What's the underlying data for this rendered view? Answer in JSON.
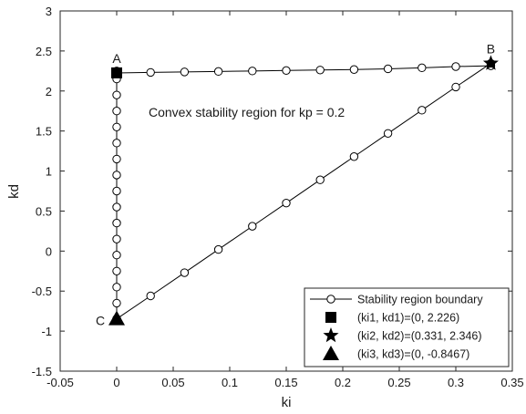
{
  "chart_data": {
    "type": "line",
    "title": "",
    "xlabel": "ki",
    "ylabel": "kd",
    "xlim": [
      -0.05,
      0.35
    ],
    "ylim": [
      -1.5,
      3
    ],
    "xticks": [
      -0.05,
      0,
      0.05,
      0.1,
      0.15,
      0.2,
      0.25,
      0.3,
      0.35
    ],
    "xtick_labels": [
      "-0.05",
      "0",
      "0.05",
      "0.1",
      "0.15",
      "0.2",
      "0.25",
      "0.3",
      "0.35"
    ],
    "yticks": [
      -1.5,
      -1,
      -0.5,
      0,
      0.5,
      1,
      1.5,
      2,
      2.5,
      3
    ],
    "ytick_labels": [
      "-1.5",
      "-1",
      "-0.5",
      "0",
      "0.5",
      "1",
      "1.5",
      "2",
      "2.5",
      "3"
    ],
    "grid": false,
    "legend_position": "bottom-right",
    "annotation": "Convex stability region for kp = 0.2",
    "series": [
      {
        "name": "Stability region boundary",
        "marker": "open-circle",
        "color": "#000000",
        "segments": [
          {
            "x": [
              0,
              0.03,
              0.06,
              0.09,
              0.12,
              0.15,
              0.18,
              0.21,
              0.24,
              0.27,
              0.3,
              0.331
            ],
            "y": [
              2.226,
              2.232,
              2.238,
              2.244,
              2.25,
              2.256,
              2.262,
              2.268,
              2.277,
              2.29,
              2.305,
              2.315
            ]
          },
          {
            "x": [
              0,
              0.03,
              0.06,
              0.09,
              0.12,
              0.15,
              0.18,
              0.21,
              0.24,
              0.27,
              0.3,
              0.331
            ],
            "y": [
              -0.8467,
              -0.56,
              -0.27,
              0.02,
              0.31,
              0.6,
              0.89,
              1.18,
              1.47,
              1.76,
              2.05,
              2.346
            ]
          },
          {
            "x": [
              0,
              0,
              0,
              0,
              0,
              0,
              0,
              0,
              0,
              0,
              0,
              0,
              0,
              0,
              0,
              0,
              0,
              0
            ],
            "y": [
              2.25,
              2.15,
              1.95,
              1.75,
              1.55,
              1.35,
              1.15,
              0.95,
              0.75,
              0.55,
              0.35,
              0.15,
              -0.05,
              -0.25,
              -0.45,
              -0.65,
              -0.8467,
              2.226
            ]
          }
        ]
      },
      {
        "name": "(ki1, kd1)=(0, 2.226)",
        "marker": "square",
        "color": "#000000",
        "x": [
          0
        ],
        "y": [
          2.226
        ]
      },
      {
        "name": "(ki2, kd2)=(0.331, 2.346)",
        "marker": "star",
        "color": "#000000",
        "x": [
          0.331
        ],
        "y": [
          2.346
        ]
      },
      {
        "name": "(ki3, kd3)=(0, -0.8467)",
        "marker": "triangle",
        "color": "#000000",
        "x": [
          0
        ],
        "y": [
          -0.8467
        ]
      }
    ],
    "point_labels": [
      {
        "text": "A",
        "x": 0,
        "y": 2.226
      },
      {
        "text": "B",
        "x": 0.331,
        "y": 2.346
      },
      {
        "text": "C",
        "x": 0,
        "y": -0.8467
      }
    ]
  }
}
